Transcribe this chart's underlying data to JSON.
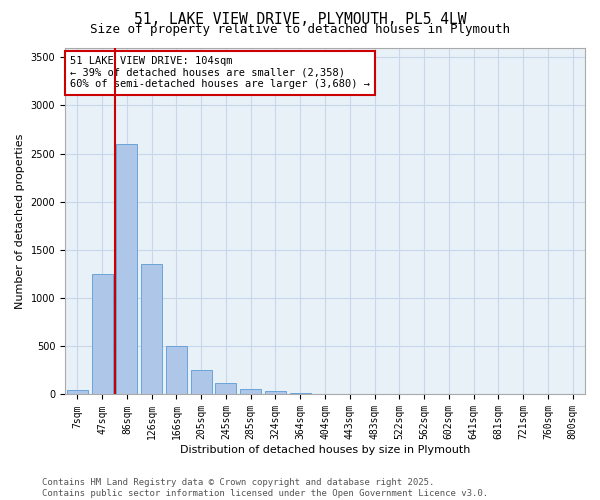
{
  "title_line1": "51, LAKE VIEW DRIVE, PLYMOUTH, PL5 4LW",
  "title_line2": "Size of property relative to detached houses in Plymouth",
  "xlabel": "Distribution of detached houses by size in Plymouth",
  "ylabel": "Number of detached properties",
  "categories": [
    "7sqm",
    "47sqm",
    "86sqm",
    "126sqm",
    "166sqm",
    "205sqm",
    "245sqm",
    "285sqm",
    "324sqm",
    "364sqm",
    "404sqm",
    "443sqm",
    "483sqm",
    "522sqm",
    "562sqm",
    "602sqm",
    "641sqm",
    "681sqm",
    "721sqm",
    "760sqm",
    "800sqm"
  ],
  "values": [
    50,
    1250,
    2600,
    1350,
    500,
    250,
    120,
    60,
    40,
    20,
    10,
    5,
    3,
    2,
    1,
    1,
    0,
    0,
    0,
    0,
    0
  ],
  "bar_color": "#aec6e8",
  "bar_edgecolor": "#5b9bd5",
  "vline_color": "#cc0000",
  "vline_x_index": 2,
  "annotation_box_text": "51 LAKE VIEW DRIVE: 104sqm\n← 39% of detached houses are smaller (2,358)\n60% of semi-detached houses are larger (3,680) →",
  "grid_color": "#c8d8e8",
  "bg_color": "#e8f0f8",
  "ylim": [
    0,
    3600
  ],
  "yticks": [
    0,
    500,
    1000,
    1500,
    2000,
    2500,
    3000,
    3500
  ],
  "footer_line1": "Contains HM Land Registry data © Crown copyright and database right 2025.",
  "footer_line2": "Contains public sector information licensed under the Open Government Licence v3.0.",
  "title_fontsize": 10.5,
  "subtitle_fontsize": 9,
  "axis_label_fontsize": 8,
  "tick_fontsize": 7,
  "annotation_fontsize": 7.5,
  "footer_fontsize": 6.5
}
